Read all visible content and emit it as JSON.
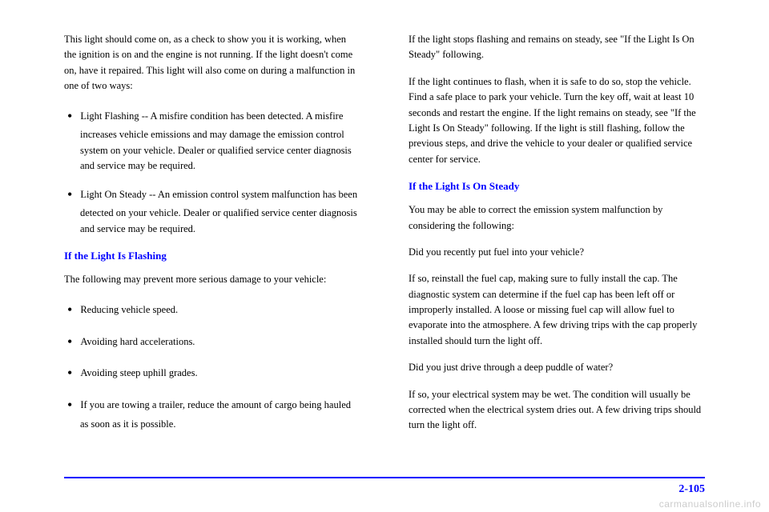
{
  "left_column": {
    "p1": "This light should come on, as a check to show you it is working, when the ignition is on and the engine is not running. If the light doesn't come on, have it repaired. This light will also come on during a malfunction in one of two ways:",
    "li1": "Light Flashing -- A misfire condition has been detected. A misfire increases vehicle emissions and may damage the emission control system on your vehicle. Dealer or qualified service center diagnosis and service may be required.",
    "li2": "Light On Steady -- An emission control system malfunction has been detected on your vehicle. Dealer or qualified service center diagnosis and service may be required.",
    "heading1": "If the Light Is Flashing",
    "p2": "The following may prevent more serious damage to your vehicle:",
    "li3": "Reducing vehicle speed.",
    "li4": "Avoiding hard accelerations.",
    "li5": "Avoiding steep uphill grades.",
    "li6": "If you are towing a trailer, reduce the amount of cargo being hauled as soon as it is possible."
  },
  "right_column": {
    "p1": "If the light stops flashing and remains on steady, see \"If the Light Is On Steady\" following.",
    "p2": "If the light continues to flash, when it is safe to do so, stop the vehicle. Find a safe place to park your vehicle. Turn the key off, wait at least 10 seconds and restart the engine. If the light remains on steady, see \"If the Light Is On Steady\" following. If the light is still flashing, follow the previous steps, and drive the vehicle to your dealer or qualified service center for service.",
    "heading1": "If the Light Is On Steady",
    "p3": "You may be able to correct the emission system malfunction by considering the following:",
    "p4": "Did you recently put fuel into your vehicle?",
    "p5": "If so, reinstall the fuel cap, making sure to fully install the cap. The diagnostic system can determine if the fuel cap has been left off or improperly installed. A loose or missing fuel cap will allow fuel to evaporate into the atmosphere. A few driving trips with the cap properly installed should turn the light off.",
    "p6": "Did you just drive through a deep puddle of water?",
    "p7": "If so, your electrical system may be wet. The condition will usually be corrected when the electrical system dries out. A few driving trips should turn the light off."
  },
  "page_number": "2-105",
  "watermark": "carmanualsonline.info"
}
